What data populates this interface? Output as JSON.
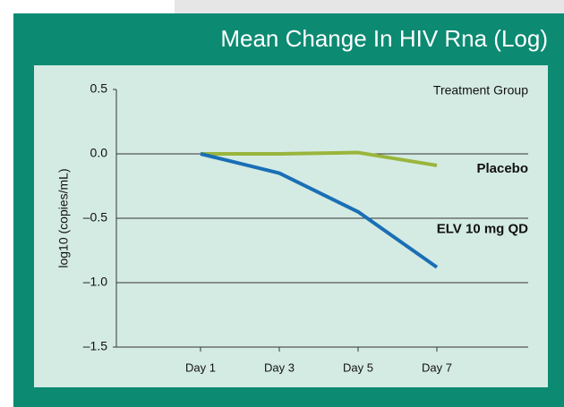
{
  "chart_data": {
    "type": "line",
    "title": "Mean Change In HIV Rna (Log)",
    "y_label": "log10 (copies/mL)",
    "legend_title": "Treatment Group",
    "categories": [
      "Day 1",
      "Day 3",
      "Day 5",
      "Day 7"
    ],
    "series": [
      {
        "name": "Placebo",
        "color": "#9ab53c",
        "values": [
          0,
          0,
          0.01,
          -0.09
        ]
      },
      {
        "name": "ELV 10 mg QD",
        "color": "#1a6fb5",
        "values": [
          0,
          -0.15,
          -0.45,
          -0.88
        ]
      }
    ],
    "ylim": [
      -1.5,
      0.5
    ],
    "yticks": [
      0.5,
      {
        "value": 0,
        "label": "0.0"
      },
      {
        "value": -0.5,
        "label": "–0.5"
      },
      {
        "value": -1,
        "label": "–1.0"
      },
      {
        "value": -1.5,
        "label": "–1.5"
      }
    ],
    "grid": true
  }
}
